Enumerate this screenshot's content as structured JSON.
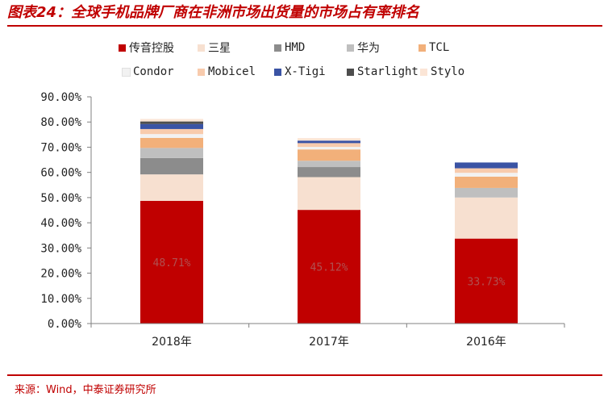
{
  "title": "图表24：全球手机品牌厂商在非洲市场出货量的市场占有率排名",
  "source": "来源：Wind，中泰证券研究所",
  "colors": {
    "accent": "#c00000"
  },
  "chart_data": {
    "type": "bar",
    "stacked": true,
    "categories": [
      "2018年",
      "2017年",
      "2016年"
    ],
    "ylim": [
      0,
      90
    ],
    "yticks": [
      "0.00%",
      "10.00%",
      "20.00%",
      "30.00%",
      "40.00%",
      "50.00%",
      "60.00%",
      "70.00%",
      "80.00%",
      "90.00%"
    ],
    "ytick_values": [
      0,
      10,
      20,
      30,
      40,
      50,
      60,
      70,
      80,
      90
    ],
    "unit": "%",
    "grid": false,
    "legend_position": "top",
    "series": [
      {
        "name": "传音控股",
        "color": "#c00000",
        "values": [
          48.71,
          45.12,
          33.73
        ],
        "labels": [
          "48.71%",
          "45.12%",
          "33.73%"
        ]
      },
      {
        "name": "三星",
        "color": "#f7e0d0",
        "values": [
          10.5,
          13.0,
          16.3
        ],
        "labels": []
      },
      {
        "name": "HMD",
        "color": "#8c8c8c",
        "values": [
          6.5,
          4.0,
          0.0
        ],
        "labels": []
      },
      {
        "name": "华为",
        "color": "#bfbfbf",
        "values": [
          4.0,
          2.5,
          3.8
        ],
        "labels": []
      },
      {
        "name": "TCL",
        "color": "#f2b07a",
        "values": [
          4.0,
          4.5,
          4.5
        ],
        "labels": []
      },
      {
        "name": "Condor",
        "color": "#f2f2f2",
        "values": [
          1.5,
          1.0,
          1.5
        ],
        "labels": []
      },
      {
        "name": "Mobicel",
        "color": "#f8cbad",
        "values": [
          2.0,
          1.5,
          1.8
        ],
        "labels": []
      },
      {
        "name": "X-Tigi",
        "color": "#3a53a4",
        "values": [
          2.0,
          1.0,
          2.3
        ],
        "labels": []
      },
      {
        "name": "Starlight",
        "color": "#4d4d4d",
        "values": [
          1.0,
          0.0,
          0.0
        ],
        "labels": []
      },
      {
        "name": "Stylo",
        "color": "#fbe5d6",
        "values": [
          1.0,
          1.0,
          0.0
        ],
        "labels": []
      }
    ]
  }
}
